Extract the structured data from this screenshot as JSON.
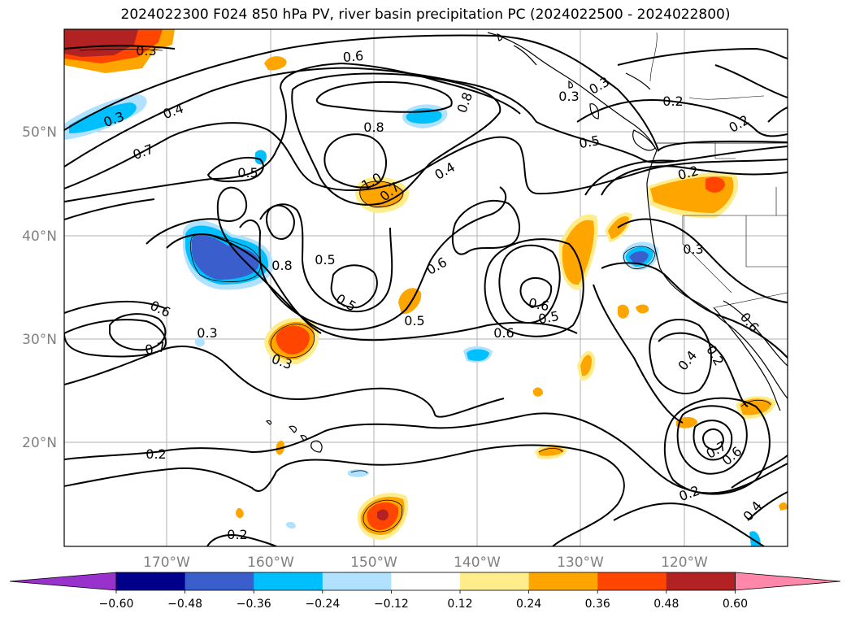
{
  "title": "2024022300 F024 850 hPa PV, river basin precipitation PC (2024022500 - 2024022800)",
  "map": {
    "lat_ticks": [
      "50°N",
      "40°N",
      "30°N",
      "20°N"
    ],
    "lon_ticks": [
      "170°W",
      "160°W",
      "150°W",
      "140°W",
      "130°W",
      "120°W"
    ],
    "grid": true
  },
  "colorbar": {
    "ticks": [
      "−0.60",
      "−0.48",
      "−0.36",
      "−0.24",
      "−0.12",
      "0.12",
      "0.24",
      "0.36",
      "0.48",
      "0.60"
    ],
    "colors": [
      "#9932cc",
      "#00008b",
      "#3a5fcd",
      "#00bfff",
      "#b0e2ff",
      "#ffffff",
      "#ffec8b",
      "#ffa500",
      "#ff4500",
      "#b22222",
      "#ff88aa"
    ],
    "extend": "both"
  },
  "contour_labels": [
    "0.3",
    "0.6",
    "0.4",
    "0.3",
    "0.7",
    "0.5",
    "0.8",
    "1.0",
    "0.7",
    "0.4",
    "0.8",
    "0.6",
    "0.8",
    "0.5",
    "0.6",
    "0.5",
    "0.3",
    "0.6",
    "0.7",
    "0.3",
    "0.2",
    "0.2",
    "0.3",
    "0.3",
    "0.2",
    "0.5",
    "0.4",
    "0.2",
    "0.6",
    "0.7",
    "0.6",
    "0.2",
    "0.2",
    "0.3",
    "0.5",
    "0.5",
    "0.6",
    "0.2",
    "0.4"
  ]
}
